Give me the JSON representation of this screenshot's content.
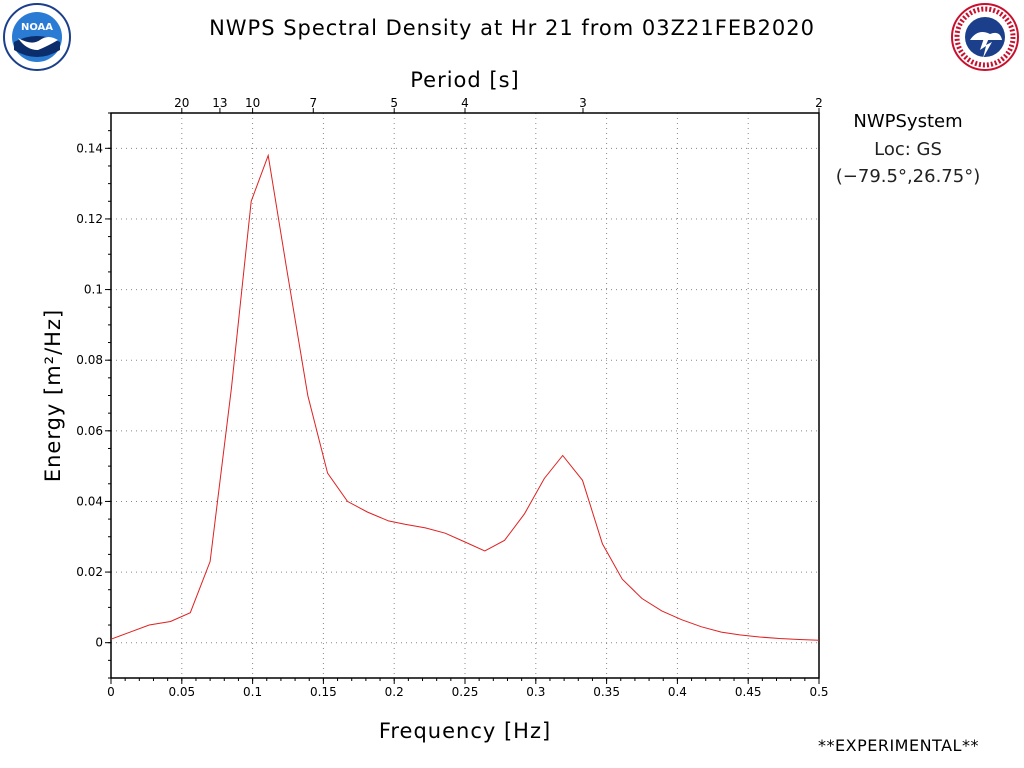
{
  "header": {
    "title": "NWPS Spectral Density at Hr 21 from 03Z21FEB2020",
    "left_logo_icon": "noaa-logo-icon",
    "left_logo_text": "NOAA",
    "right_logo_icon": "nws-logo-icon",
    "right_logo_text": "NATIONAL WEATHER SERVICE"
  },
  "info": {
    "model": "NWPSystem",
    "location": "Loc: GS",
    "coords": "(−79.5°,26.75°)"
  },
  "footer": {
    "experimental": "**EXPERIMENTAL**"
  },
  "colors": {
    "line": "#e02020",
    "grid": "#888888",
    "axis": "#000000"
  },
  "chart_data": {
    "type": "line",
    "title": "NWPS Spectral Density at Hr 21 from 03Z21FEB2020",
    "xlabel": "Frequency [Hz]",
    "ylabel": "Energy [m²/Hz]",
    "top_axis_label": "Period [s]",
    "xlim": [
      0,
      0.5
    ],
    "ylim": [
      -0.01,
      0.15
    ],
    "grid": true,
    "x_ticks": [
      0,
      0.05,
      0.1,
      0.15,
      0.2,
      0.25,
      0.3,
      0.35,
      0.4,
      0.45,
      0.5
    ],
    "x_tick_labels": [
      "0",
      "0.05",
      "0.1",
      "0.15",
      "0.2",
      "0.25",
      "0.3",
      "0.35",
      "0.4",
      "0.45",
      "0.5"
    ],
    "y_ticks": [
      0,
      0.02,
      0.04,
      0.06,
      0.08,
      0.1,
      0.12,
      0.14
    ],
    "y_tick_labels": [
      "0",
      "0.02",
      "0.04",
      "0.06",
      "0.08",
      "0.1",
      "0.12",
      "0.14"
    ],
    "period_ticks": [
      20,
      13,
      10,
      7,
      5,
      4,
      3,
      2
    ],
    "series": [
      {
        "color": "#e02020",
        "x": [
          0.0,
          0.027,
          0.042,
          0.056,
          0.07,
          0.085,
          0.099,
          0.111,
          0.124,
          0.139,
          0.153,
          0.167,
          0.181,
          0.196,
          0.208,
          0.222,
          0.236,
          0.25,
          0.264,
          0.278,
          0.292,
          0.306,
          0.319,
          0.333,
          0.347,
          0.361,
          0.375,
          0.389,
          0.403,
          0.417,
          0.431,
          0.444,
          0.458,
          0.472,
          0.486,
          0.5
        ],
        "y": [
          0.001,
          0.005,
          0.006,
          0.0085,
          0.023,
          0.072,
          0.125,
          0.138,
          0.106,
          0.07,
          0.048,
          0.04,
          0.037,
          0.0345,
          0.0335,
          0.0325,
          0.031,
          0.0285,
          0.026,
          0.029,
          0.0365,
          0.0465,
          0.053,
          0.046,
          0.028,
          0.018,
          0.0125,
          0.009,
          0.0065,
          0.0045,
          0.003,
          0.0022,
          0.0016,
          0.0012,
          0.0009,
          0.0007
        ]
      }
    ]
  }
}
